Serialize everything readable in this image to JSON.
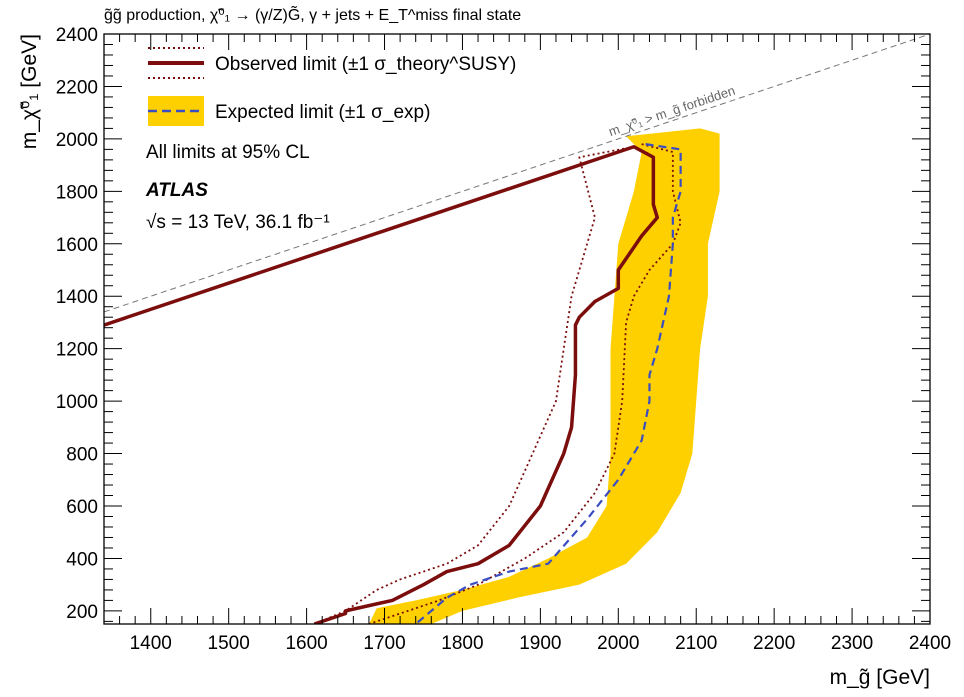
{
  "header": {
    "title": "g̃g̃ production, χ̃⁰₁ → (γ/Z)G̃, γ + jets + E_T^miss final state"
  },
  "chart_data": {
    "type": "line",
    "xlabel": "m_g̃ [GeV]",
    "ylabel": "m_χ̃⁰₁ [GeV]",
    "xlim": [
      1340,
      2400
    ],
    "ylim": [
      150,
      2400
    ],
    "xticks": [
      1400,
      1500,
      1600,
      1700,
      1800,
      1900,
      2000,
      2100,
      2200,
      2300,
      2400
    ],
    "yticks": [
      200,
      400,
      600,
      800,
      1000,
      1200,
      1400,
      1600,
      1800,
      2000,
      2200,
      2400
    ],
    "grid": false,
    "legend": {
      "observed": "Observed limit (±1 σ_theory^SUSY)",
      "expected": "Expected limit (±1 σ_exp)",
      "cl_note": "All limits at 95% CL",
      "experiment": "ATLAS",
      "energy": "√s = 13 TeV, 36.1 fb⁻¹"
    },
    "kinematic_label": "m_χ̃⁰₁ > m_g̃ forbidden",
    "colors": {
      "observed": "#7b0d0d",
      "expected": "#3a4ec2",
      "band": "#ffd000",
      "diagonal": "#777777"
    },
    "series": [
      {
        "name": "Observed limit",
        "style": "solid",
        "x": [
          1340,
          2020,
          2045,
          2045,
          2050,
          2030,
          2000,
          2000,
          1970,
          1950,
          1945,
          1945,
          1940,
          1930,
          1900,
          1860,
          1820,
          1780,
          1750,
          1710,
          1650,
          1650,
          1610
        ],
        "y": [
          1290,
          1970,
          1930,
          1750,
          1700,
          1630,
          1500,
          1430,
          1380,
          1320,
          1290,
          1100,
          900,
          800,
          600,
          450,
          380,
          350,
          300,
          240,
          200,
          190,
          150
        ]
      },
      {
        "name": "Observed +1σ theory",
        "style": "dotted",
        "x": [
          2020,
          1950,
          1970,
          1960,
          1940,
          1930,
          1920,
          1890,
          1860,
          1820,
          1780,
          1720,
          1690,
          1650,
          1610
        ],
        "y": [
          1970,
          1930,
          1700,
          1600,
          1400,
          1200,
          1000,
          800,
          600,
          450,
          380,
          320,
          280,
          200,
          150
        ]
      },
      {
        "name": "Observed -1σ theory",
        "style": "dotted",
        "x": [
          2030,
          2070,
          2070,
          2080,
          2070,
          2040,
          2020,
          2010,
          2005,
          1995,
          1970,
          1930,
          1880,
          1820,
          1770,
          1730,
          1680
        ],
        "y": [
          1980,
          1950,
          1800,
          1680,
          1600,
          1500,
          1400,
          1300,
          1000,
          800,
          650,
          500,
          400,
          300,
          240,
          200,
          150
        ]
      },
      {
        "name": "Expected limit",
        "style": "dashed",
        "x": [
          2035,
          2080,
          2080,
          2070,
          2070,
          2065,
          2050,
          2040,
          2040,
          2030,
          2000,
          1960,
          1910,
          1860,
          1810,
          1780,
          1740
        ],
        "y": [
          1980,
          1960,
          1800,
          1700,
          1600,
          1400,
          1200,
          1100,
          1000,
          850,
          700,
          550,
          380,
          350,
          300,
          250,
          150
        ]
      }
    ],
    "band_expected": {
      "name": "Expected ±1σ exp",
      "upper_x": [
        2010,
        2105,
        2130,
        2130,
        2115,
        2115,
        2105,
        2100,
        2095,
        2080,
        2050,
        2010,
        1950,
        1870,
        1800,
        1760
      ],
      "upper_y": [
        2010,
        2040,
        2020,
        1800,
        1600,
        1400,
        1200,
        1000,
        800,
        650,
        500,
        380,
        300,
        250,
        200,
        150
      ],
      "lower_x": [
        1680,
        1690,
        1740,
        1800,
        1860,
        1910,
        1960,
        1985,
        1990,
        1990,
        1990,
        1995,
        2000,
        2020,
        2030,
        2010
      ],
      "lower_y": [
        150,
        210,
        240,
        280,
        330,
        400,
        480,
        600,
        800,
        1000,
        1200,
        1400,
        1600,
        1800,
        1950,
        2010
      ]
    },
    "kinematic_limit": {
      "x": [
        1340,
        2400
      ],
      "y": [
        1340,
        2400
      ]
    }
  }
}
